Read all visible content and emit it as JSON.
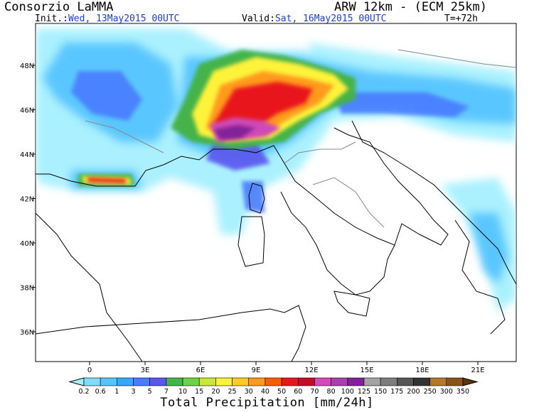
{
  "header": {
    "org": "Consorzio LaMMA",
    "model": "ARW 12km - (ECM 25km)",
    "init_label": "Init.:",
    "init_value": "Wed, 13May2015 00UTC",
    "valid_label": "Valid:",
    "valid_value": "Sat, 16May2015 00UTC",
    "step": "T=+72h"
  },
  "axes": {
    "lat_labels": [
      "48N",
      "46N",
      "44N",
      "42N",
      "40N",
      "38N",
      "36N"
    ],
    "lat_values": [
      48,
      46,
      44,
      42,
      40,
      38,
      36
    ],
    "lon_labels": [
      "0",
      "3E",
      "6E",
      "9E",
      "12E",
      "15E",
      "18E",
      "21E"
    ],
    "lon_values": [
      0,
      3,
      6,
      9,
      12,
      15,
      18,
      21
    ]
  },
  "colorbar": {
    "title": "Total Precipitation [mm/24h]",
    "levels": [
      "0.2",
      "0.6",
      "1",
      "3",
      "5",
      "7",
      "10",
      "15",
      "20",
      "25",
      "30",
      "40",
      "50",
      "60",
      "70",
      "80",
      "100",
      "125",
      "150",
      "175",
      "200",
      "250",
      "300",
      "350"
    ],
    "colors": [
      "#a6f0ff",
      "#7fdcff",
      "#56c4ff",
      "#3aa6ff",
      "#4a7bff",
      "#5a55ee",
      "#44b34a",
      "#6fd24a",
      "#c8e63a",
      "#fff23a",
      "#ffcc22",
      "#ff9a1a",
      "#ff5a0a",
      "#e8141e",
      "#c80a28",
      "#d04ab8",
      "#a840b0",
      "#84209a",
      "#a3a3a3",
      "#7d7d7d",
      "#555555",
      "#333333",
      "#b5782a",
      "#8a5418",
      "#5c3608"
    ]
  }
}
